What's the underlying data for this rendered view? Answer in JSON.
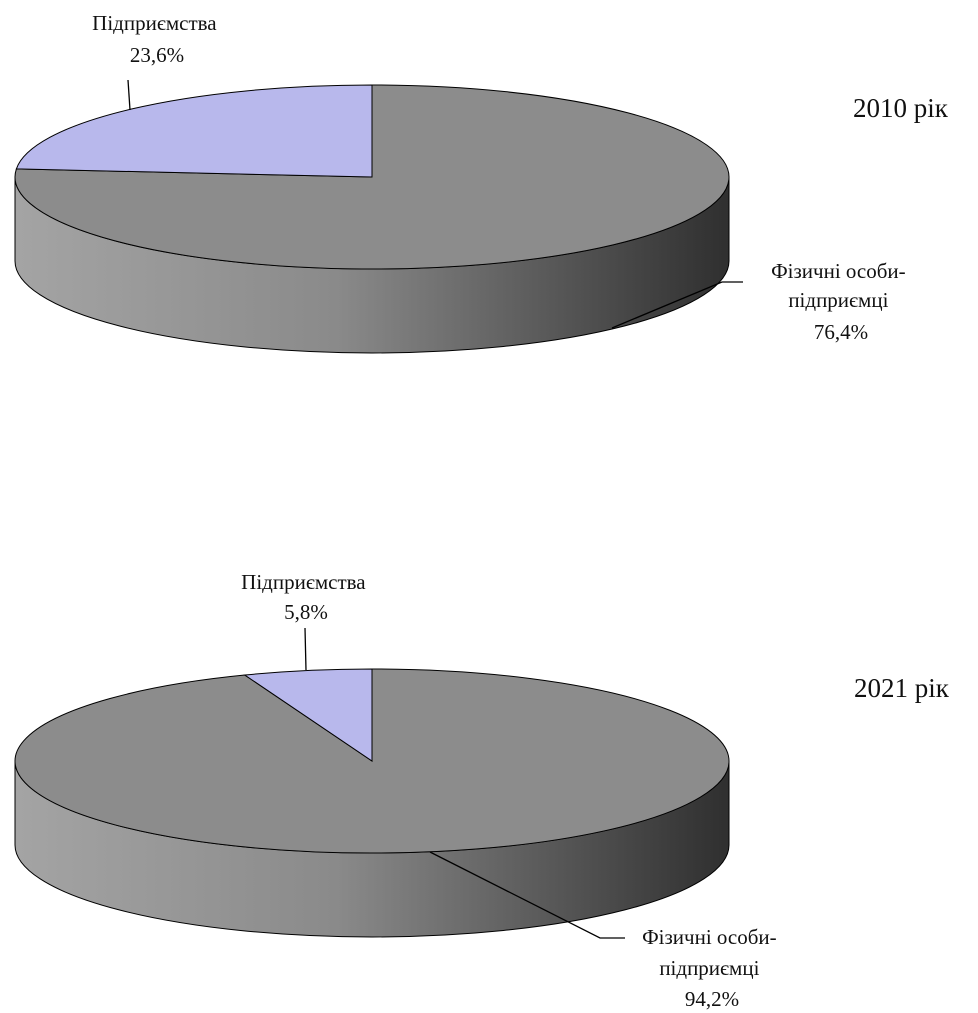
{
  "chart_data": [
    {
      "type": "pie",
      "style": "3d",
      "title": "2010 рік",
      "slices": [
        {
          "name": "Фізичні особи-підприємці",
          "name_lines": [
            "Фізичні особи-",
            "підприємці"
          ],
          "value": 76.4,
          "value_label": "76,4%",
          "color": "#8c8c8c"
        },
        {
          "name": "Підприємства",
          "name_lines": [
            "Підприємства"
          ],
          "value": 23.6,
          "value_label": "23,6%",
          "color": "#b8b8ec"
        }
      ]
    },
    {
      "type": "pie",
      "style": "3d",
      "title": "2021 рік",
      "slices": [
        {
          "name": "Фізичні особи-підприємці",
          "name_lines": [
            "Фізичні особи-",
            "підприємці"
          ],
          "value": 94.2,
          "value_label": "94,2%",
          "color": "#8c8c8c"
        },
        {
          "name": "Підприємства",
          "name_lines": [
            "Підприємства"
          ],
          "value": 5.8,
          "value_label": "5,8%",
          "color": "#b8b8ec"
        }
      ]
    }
  ]
}
